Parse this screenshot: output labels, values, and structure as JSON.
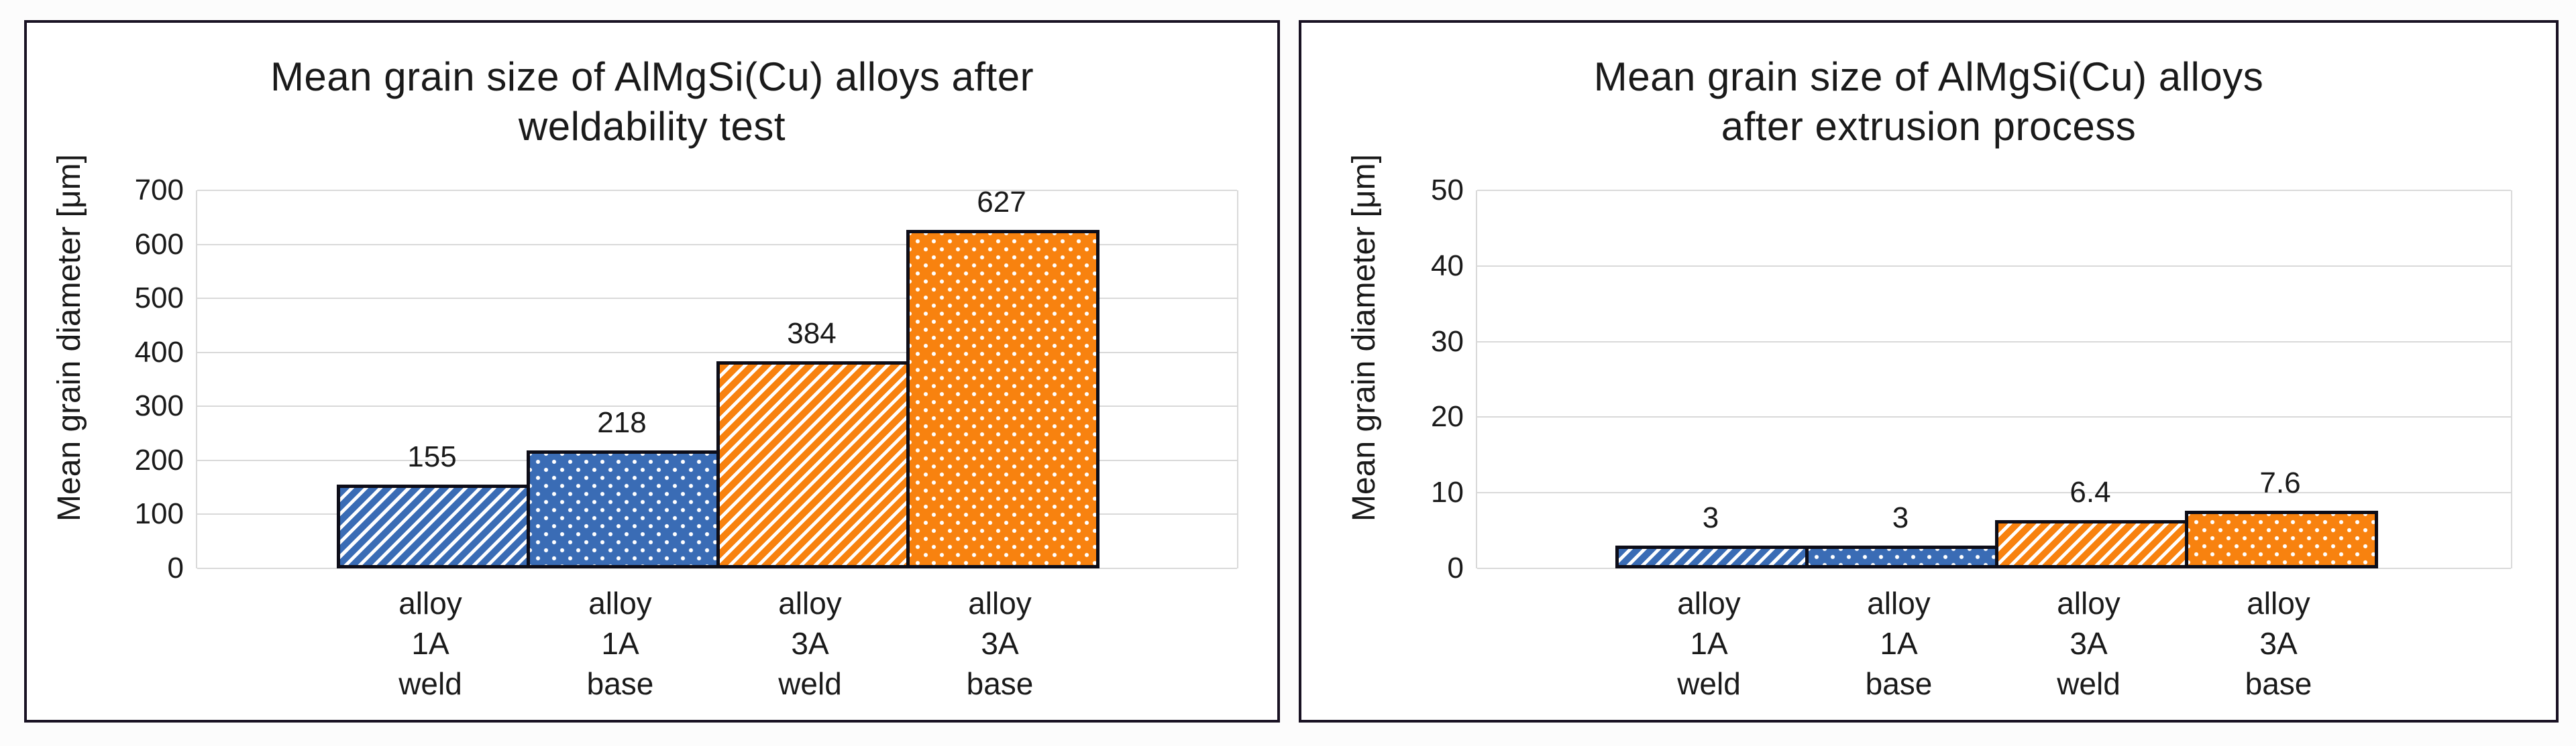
{
  "colors": {
    "bar_blue": "#3a6cb5",
    "bar_orange": "#f8820f",
    "bar_outline": "#0d0d18",
    "panel_border": "#191223",
    "gridline": "#d9d9d9",
    "text": "#1a1a1a",
    "background": "#fcfcfc"
  },
  "chart_data": [
    {
      "type": "bar",
      "title": "Mean grain size of AlMgSi(Cu) alloys after weldability test",
      "title_lines": [
        "Mean grain size of AlMgSi(Cu) alloys after",
        "weldability test"
      ],
      "ylabel": "Mean grain diameter [μm]",
      "xlabel": "",
      "ylim": [
        0,
        700
      ],
      "yticks": [
        700,
        600,
        500,
        400,
        300,
        200,
        100,
        0
      ],
      "grid": true,
      "legend": "none",
      "categories": [
        "alloy 1A weld",
        "alloy 1A base",
        "alloy 3A weld",
        "alloy 3A base"
      ],
      "category_lines": [
        [
          "alloy",
          "1A",
          "weld"
        ],
        [
          "alloy",
          "1A",
          "base"
        ],
        [
          "alloy",
          "3A",
          "weld"
        ],
        [
          "alloy",
          "3A",
          "base"
        ]
      ],
      "values": [
        155,
        218,
        384,
        627
      ],
      "value_labels": [
        "155",
        "218",
        "384",
        "627"
      ],
      "bar_styles": [
        "blue-diagonal-hatch",
        "blue-dots",
        "orange-diagonal-hatch",
        "orange-dots"
      ]
    },
    {
      "type": "bar",
      "title": "Mean grain size of AlMgSi(Cu) alloys after extrusion process",
      "title_lines": [
        "Mean grain size of AlMgSi(Cu) alloys",
        "after extrusion process"
      ],
      "ylabel": "Mean grain diameter [μm]",
      "xlabel": "",
      "ylim": [
        0,
        50
      ],
      "yticks": [
        50,
        40,
        30,
        20,
        10,
        0
      ],
      "grid": true,
      "legend": "none",
      "categories": [
        "alloy 1A weld",
        "alloy 1A base",
        "alloy 3A weld",
        "alloy 3A base"
      ],
      "category_lines": [
        [
          "alloy",
          "1A",
          "weld"
        ],
        [
          "alloy",
          "1A",
          "base"
        ],
        [
          "alloy",
          "3A",
          "weld"
        ],
        [
          "alloy",
          "3A",
          "base"
        ]
      ],
      "values": [
        3,
        3,
        6.4,
        7.6
      ],
      "value_labels": [
        "3",
        "3",
        "6.4",
        "7.6"
      ],
      "bar_styles": [
        "blue-diagonal-hatch",
        "blue-dots",
        "orange-diagonal-hatch",
        "orange-dots"
      ]
    }
  ]
}
